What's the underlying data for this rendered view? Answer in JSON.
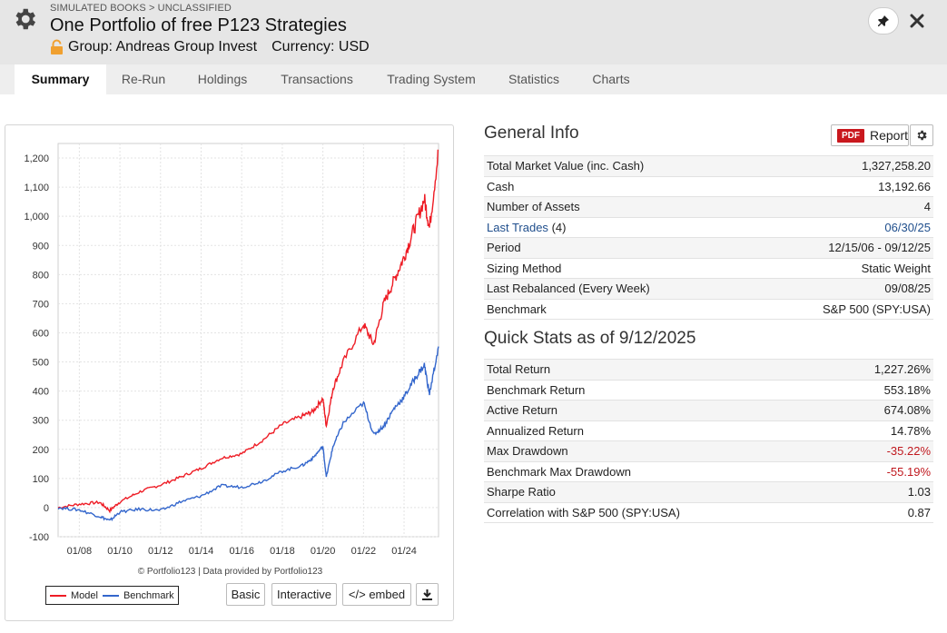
{
  "header": {
    "breadcrumb": "SIMULATED BOOKS > UNCLASSIFIED",
    "title": "One Portfolio of free P123 Strategies",
    "group": "Group: Andreas Group Invest",
    "currency": "Currency: USD",
    "icons": {
      "settings": "gear-icon",
      "lock": "lock-icon",
      "pin": "pin-icon",
      "close": "close-icon"
    }
  },
  "tabs": [
    {
      "label": "Summary",
      "active": true
    },
    {
      "label": "Re-Run",
      "active": false
    },
    {
      "label": "Holdings",
      "active": false
    },
    {
      "label": "Transactions",
      "active": false
    },
    {
      "label": "Trading System",
      "active": false
    },
    {
      "label": "Statistics",
      "active": false
    },
    {
      "label": "Charts",
      "active": false
    }
  ],
  "chart": {
    "credit": "© Portfolio123 | Data provided by Portfolio123",
    "buttons": {
      "basic": "Basic",
      "interactive": "Interactive",
      "embed": "</> embed"
    },
    "download_icon": "download-icon"
  },
  "chart_data": {
    "type": "line",
    "title": "",
    "xlabel": "",
    "ylabel": "",
    "ylim": [
      -100,
      1250
    ],
    "yticks": [
      "-100",
      "0",
      "100",
      "200",
      "300",
      "400",
      "500",
      "600",
      "700",
      "800",
      "900",
      "1,000",
      "1,100",
      "1,200"
    ],
    "xticks": [
      "01/08",
      "01/10",
      "01/12",
      "01/14",
      "01/16",
      "01/18",
      "01/20",
      "01/22",
      "01/24"
    ],
    "x": [
      "12/15/06",
      "01/08",
      "01/09",
      "07/09",
      "01/10",
      "01/11",
      "01/12",
      "01/13",
      "01/14",
      "01/15",
      "01/16",
      "01/17",
      "01/18",
      "01/19",
      "07/19",
      "01/20",
      "03/20",
      "07/20",
      "01/21",
      "01/22",
      "07/22",
      "01/23",
      "07/23",
      "01/24",
      "07/24",
      "01/25",
      "04/25",
      "09/12/25"
    ],
    "series": [
      {
        "name": "Model",
        "color": "#ee1c25",
        "values": [
          0,
          12,
          18,
          -10,
          20,
          55,
          78,
          105,
          135,
          170,
          185,
          230,
          285,
          315,
          330,
          375,
          280,
          410,
          500,
          630,
          560,
          700,
          780,
          860,
          960,
          1060,
          960,
          1227
        ]
      },
      {
        "name": "Benchmark",
        "color": "#3366cc",
        "values": [
          0,
          -8,
          -30,
          -45,
          -15,
          -5,
          -10,
          20,
          40,
          75,
          70,
          90,
          125,
          145,
          170,
          210,
          105,
          210,
          290,
          360,
          250,
          280,
          340,
          380,
          440,
          490,
          390,
          553
        ]
      }
    ],
    "grid": true,
    "legend": "bottom-left"
  },
  "general_info": {
    "title": "General Info",
    "report_label": "Report",
    "pdf_label": "PDF",
    "rows": [
      {
        "label": "Total Market Value (inc. Cash)",
        "value": "1,327,258.20"
      },
      {
        "label": "Cash",
        "value": "13,192.66"
      },
      {
        "label": "Number of Assets",
        "value": "4"
      },
      {
        "label": "Last Trades",
        "extra": "(4)",
        "value": "06/30/25",
        "link": true
      },
      {
        "label": "Period",
        "value": "12/15/06 - 09/12/25"
      },
      {
        "label": "Sizing Method",
        "value": "Static Weight"
      },
      {
        "label": "Last Rebalanced (Every Week)",
        "value": "09/08/25"
      },
      {
        "label": "Benchmark",
        "value": "S&P 500 (SPY:USA)"
      }
    ]
  },
  "quick_stats": {
    "title": "Quick Stats as of 9/12/2025",
    "rows": [
      {
        "label": "Total Return",
        "value": "1,227.26%"
      },
      {
        "label": "Benchmark Return",
        "value": "553.18%"
      },
      {
        "label": "Active Return",
        "value": "674.08%"
      },
      {
        "label": "Annualized Return",
        "value": "14.78%"
      },
      {
        "label": "Max Drawdown",
        "value": "-35.22%",
        "negative": true
      },
      {
        "label": "Benchmark Max Drawdown",
        "value": "-55.19%",
        "negative": true
      },
      {
        "label": "Sharpe Ratio",
        "value": "1.03"
      },
      {
        "label": "Correlation with S&P 500 (SPY:USA)",
        "value": "0.87"
      }
    ]
  }
}
